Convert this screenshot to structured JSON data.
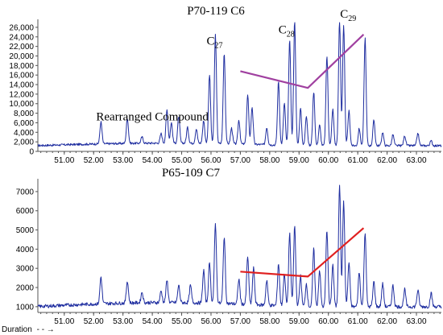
{
  "figure": {
    "duration_label": "Duration",
    "duration_arrow": "- - →"
  },
  "chart_data": [
    {
      "type": "line",
      "title": "P70-119  C6",
      "xlim": [
        50.1,
        63.85
      ],
      "ylim": [
        0,
        27000
      ],
      "xticks": [
        "51.00",
        "52.00",
        "53.00",
        "54.00",
        "55.00",
        "56.00",
        "57.00",
        "58.00",
        "59.00",
        "60.00",
        "61.00",
        "62.00",
        "63.00"
      ],
      "yticks": [
        "0",
        "2,000",
        "4,000",
        "6,000",
        "8,000",
        "10,000",
        "12,000",
        "14,000",
        "16,000",
        "18,000",
        "20,000",
        "22,000",
        "24,000",
        "26,000"
      ],
      "annotations": [
        {
          "text": "Rearranged Compound",
          "x": 54.0,
          "y": 6500
        },
        {
          "text": "C",
          "sub": "27",
          "x": 55.85,
          "y": 22400
        },
        {
          "text": "C",
          "sub": "28",
          "x": 58.3,
          "y": 24700
        },
        {
          "text": "C",
          "sub": "29",
          "x": 60.4,
          "y": 28000
        }
      ],
      "trend_line": {
        "color": "#a040a0",
        "points": [
          [
            57.0,
            16800
          ],
          [
            59.3,
            13300
          ],
          [
            61.2,
            24500
          ]
        ]
      },
      "baseline": 1200,
      "noise_amplitude": 450,
      "peaks": [
        {
          "x": 52.25,
          "h": 5800
        },
        {
          "x": 53.15,
          "h": 6500
        },
        {
          "x": 53.65,
          "h": 2500
        },
        {
          "x": 54.3,
          "h": 3200
        },
        {
          "x": 54.5,
          "h": 8200
        },
        {
          "x": 54.65,
          "h": 5500
        },
        {
          "x": 54.9,
          "h": 6800
        },
        {
          "x": 55.2,
          "h": 4500
        },
        {
          "x": 55.5,
          "h": 4200
        },
        {
          "x": 55.75,
          "h": 6000
        },
        {
          "x": 55.95,
          "h": 15600
        },
        {
          "x": 56.15,
          "h": 24000
        },
        {
          "x": 56.45,
          "h": 20200
        },
        {
          "x": 56.7,
          "h": 4500
        },
        {
          "x": 56.95,
          "h": 6200
        },
        {
          "x": 57.25,
          "h": 11500
        },
        {
          "x": 57.4,
          "h": 9000
        },
        {
          "x": 57.9,
          "h": 4800
        },
        {
          "x": 58.3,
          "h": 14500
        },
        {
          "x": 58.5,
          "h": 10000
        },
        {
          "x": 58.68,
          "h": 23200
        },
        {
          "x": 58.85,
          "h": 27400
        },
        {
          "x": 59.05,
          "h": 9000
        },
        {
          "x": 59.25,
          "h": 7500
        },
        {
          "x": 59.5,
          "h": 12500
        },
        {
          "x": 59.7,
          "h": 5500
        },
        {
          "x": 59.95,
          "h": 20000
        },
        {
          "x": 60.15,
          "h": 8800
        },
        {
          "x": 60.38,
          "h": 27500
        },
        {
          "x": 60.52,
          "h": 26300
        },
        {
          "x": 60.7,
          "h": 8500
        },
        {
          "x": 61.05,
          "h": 4800
        },
        {
          "x": 61.25,
          "h": 23800
        },
        {
          "x": 61.55,
          "h": 6500
        },
        {
          "x": 61.85,
          "h": 4000
        },
        {
          "x": 62.2,
          "h": 3500
        },
        {
          "x": 62.6,
          "h": 3300
        },
        {
          "x": 63.05,
          "h": 3800
        },
        {
          "x": 63.5,
          "h": 2200
        }
      ]
    },
    {
      "type": "line",
      "title": "P65-109  C7",
      "xlim": [
        50.1,
        63.85
      ],
      "ylim": [
        700,
        7500
      ],
      "xticks": [
        "51.00",
        "52.00",
        "53.00",
        "54.00",
        "55.00",
        "56.00",
        "57.00",
        "58.00",
        "59.00",
        "60.00",
        "61.00",
        "62.00",
        "63.00"
      ],
      "yticks": [
        "1000",
        "2000",
        "3000",
        "4000",
        "5000",
        "6000",
        "7000"
      ],
      "annotations": [],
      "trend_line": {
        "color": "#e02020",
        "points": [
          [
            57.0,
            2830
          ],
          [
            59.3,
            2570
          ],
          [
            61.2,
            5100
          ]
        ]
      },
      "baseline": 1000,
      "noise_amplitude": 180,
      "peaks": [
        {
          "x": 52.25,
          "h": 2400
        },
        {
          "x": 53.15,
          "h": 2150
        },
        {
          "x": 53.65,
          "h": 1550
        },
        {
          "x": 54.3,
          "h": 1600
        },
        {
          "x": 54.5,
          "h": 2150
        },
        {
          "x": 54.9,
          "h": 1900
        },
        {
          "x": 55.3,
          "h": 1900
        },
        {
          "x": 55.75,
          "h": 2700
        },
        {
          "x": 55.95,
          "h": 3100
        },
        {
          "x": 56.15,
          "h": 5150
        },
        {
          "x": 56.45,
          "h": 4500
        },
        {
          "x": 56.95,
          "h": 2300
        },
        {
          "x": 57.25,
          "h": 3500
        },
        {
          "x": 57.45,
          "h": 2900
        },
        {
          "x": 57.9,
          "h": 2300
        },
        {
          "x": 58.3,
          "h": 3200
        },
        {
          "x": 58.5,
          "h": 2700
        },
        {
          "x": 58.68,
          "h": 4800
        },
        {
          "x": 58.85,
          "h": 5200
        },
        {
          "x": 59.05,
          "h": 2600
        },
        {
          "x": 59.25,
          "h": 2200
        },
        {
          "x": 59.5,
          "h": 4000
        },
        {
          "x": 59.7,
          "h": 2900
        },
        {
          "x": 59.95,
          "h": 5000
        },
        {
          "x": 60.15,
          "h": 3200
        },
        {
          "x": 60.38,
          "h": 7400
        },
        {
          "x": 60.52,
          "h": 6500
        },
        {
          "x": 60.7,
          "h": 3300
        },
        {
          "x": 61.05,
          "h": 2800
        },
        {
          "x": 61.25,
          "h": 4900
        },
        {
          "x": 61.55,
          "h": 2300
        },
        {
          "x": 61.85,
          "h": 2200
        },
        {
          "x": 62.2,
          "h": 2100
        },
        {
          "x": 62.6,
          "h": 1900
        },
        {
          "x": 63.05,
          "h": 1850
        },
        {
          "x": 63.5,
          "h": 1700
        }
      ]
    }
  ]
}
